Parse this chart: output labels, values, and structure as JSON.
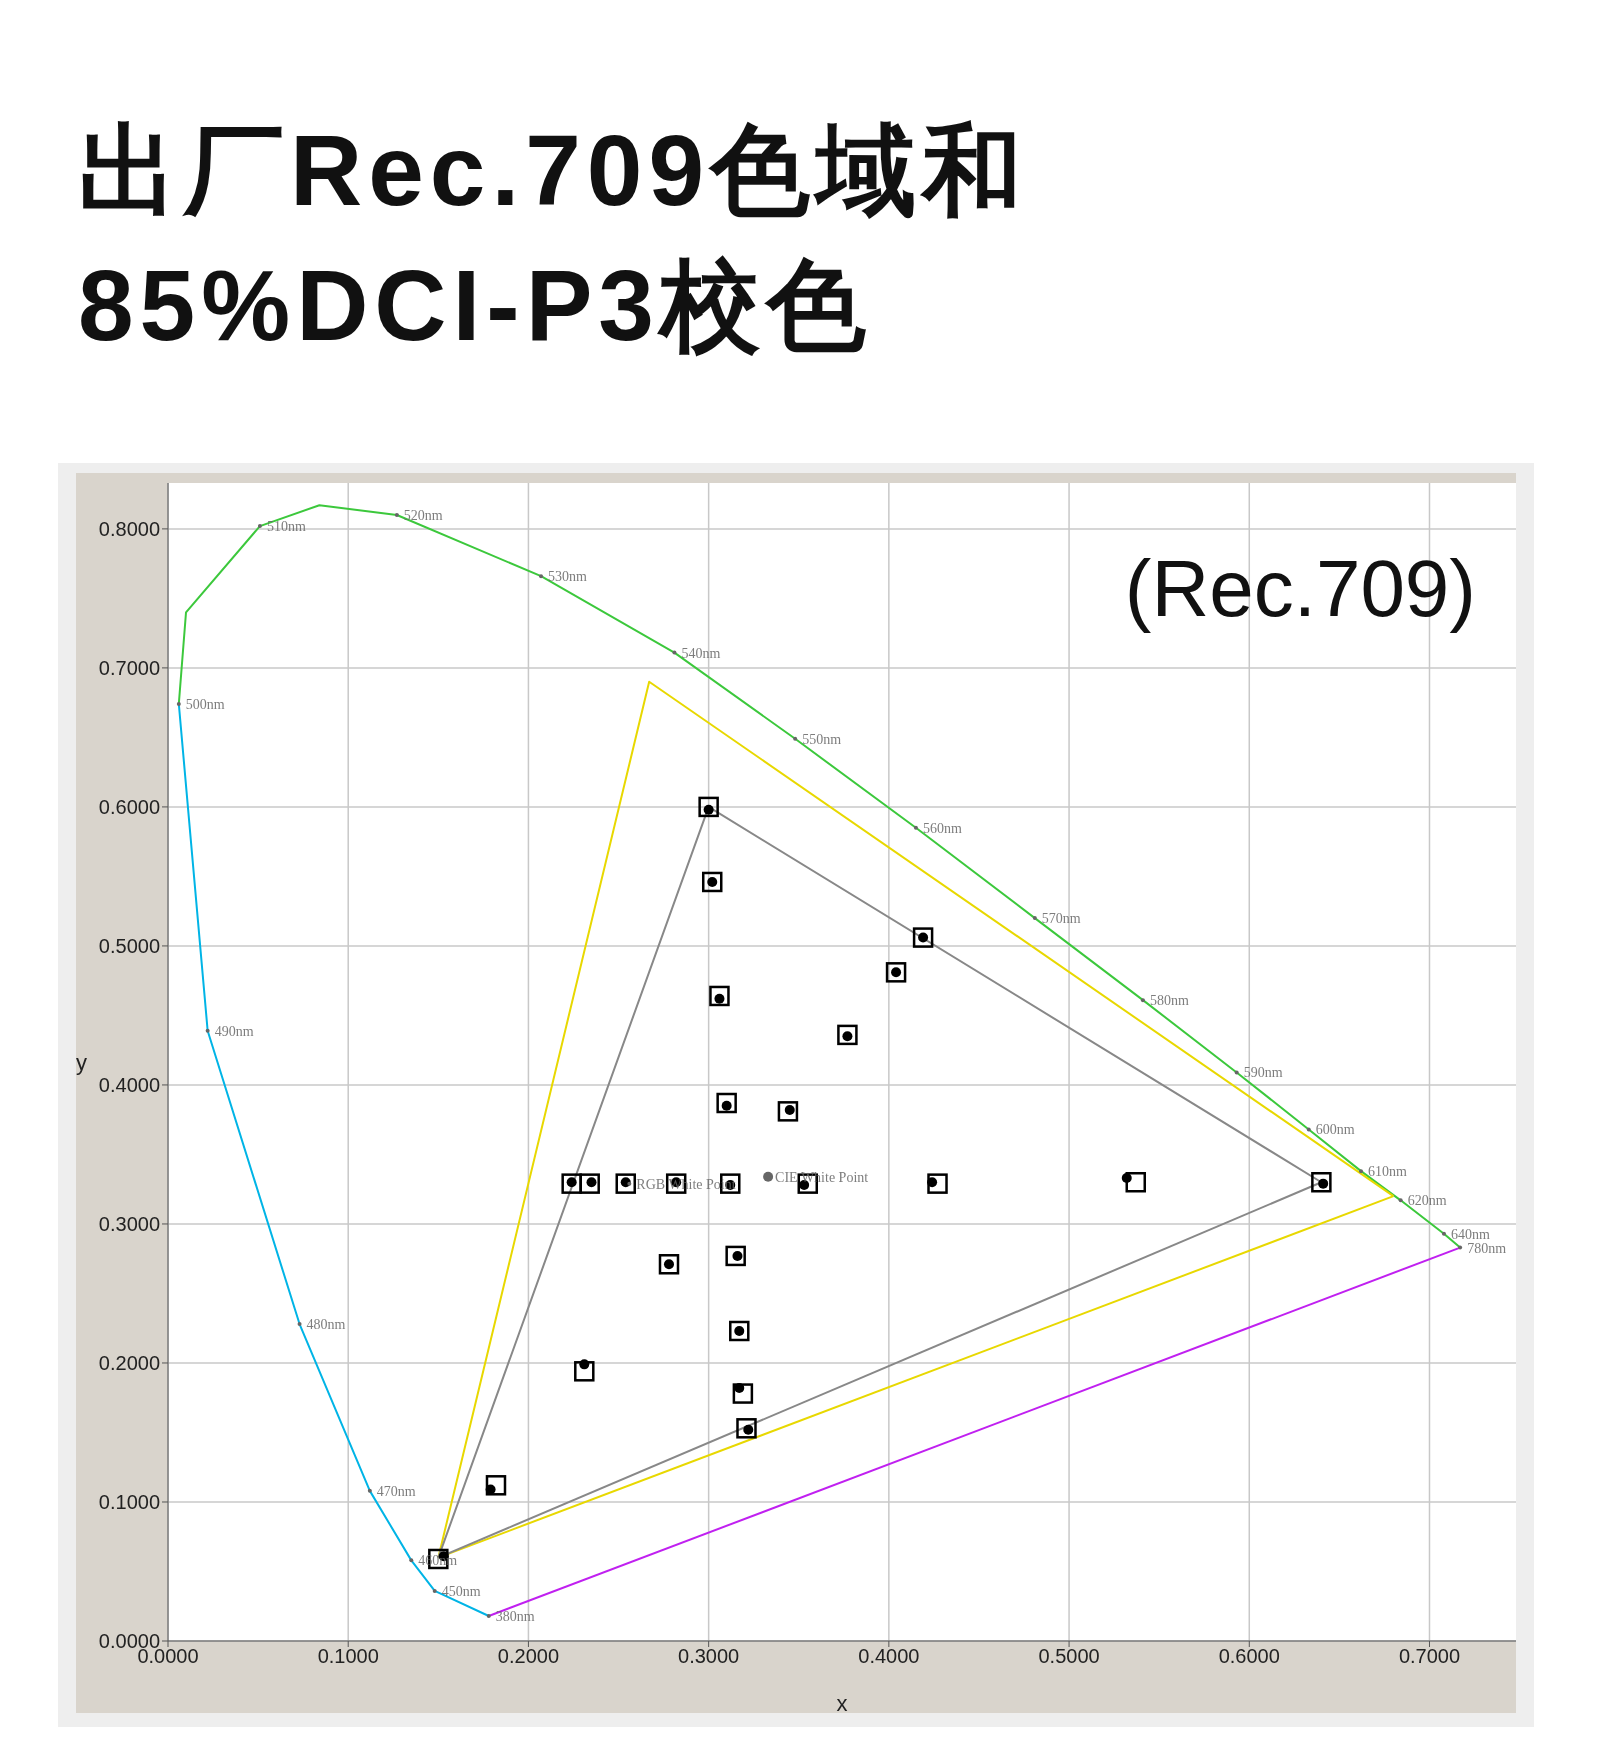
{
  "chart_data": {
    "type": "scatter",
    "title": "出厂Rec.709色域和\n85%DCI-P3校色",
    "xlabel": "x",
    "ylabel": "y",
    "xlim": [
      0,
      0.748
    ],
    "ylim": [
      0,
      0.833
    ],
    "xticks": [
      {
        "value": 0,
        "label": "0.0000"
      },
      {
        "value": 0.1,
        "label": "0.1000"
      },
      {
        "value": 0.2,
        "label": "0.2000"
      },
      {
        "value": 0.3,
        "label": "0.3000"
      },
      {
        "value": 0.4,
        "label": "0.4000"
      },
      {
        "value": 0.5,
        "label": "0.5000"
      },
      {
        "value": 0.6,
        "label": "0.6000"
      },
      {
        "value": 0.7,
        "label": "0.7000"
      }
    ],
    "yticks": [
      {
        "value": 0,
        "label": "0.0000"
      },
      {
        "value": 0.1,
        "label": "0.1000"
      },
      {
        "value": 0.2,
        "label": "0.2000"
      },
      {
        "value": 0.3,
        "label": "0.3000"
      },
      {
        "value": 0.4,
        "label": "0.4000"
      },
      {
        "value": 0.5,
        "label": "0.5000"
      },
      {
        "value": 0.6,
        "label": "0.6000"
      },
      {
        "value": 0.7,
        "label": "0.7000"
      },
      {
        "value": 0.8,
        "label": "0.8000"
      }
    ],
    "grid": true,
    "series": [
      {
        "type": "line",
        "color": "#00b4e6",
        "marker": "none",
        "x": [
          0.006,
          0.022,
          0.073,
          0.112,
          0.135,
          0.148,
          0.178
        ],
        "values": [
          0.674,
          0.439,
          0.228,
          0.108,
          0.058,
          0.036,
          0.018
        ]
      },
      {
        "type": "line",
        "color": "#3cc83c",
        "marker": "none",
        "x": [
          0.006,
          0.01,
          0.051,
          0.084,
          0.127,
          0.207,
          0.281,
          0.348,
          0.415,
          0.481,
          0.541,
          0.593,
          0.633,
          0.662,
          0.684,
          0.708,
          0.717
        ],
        "values": [
          0.674,
          0.74,
          0.802,
          0.817,
          0.81,
          0.766,
          0.711,
          0.649,
          0.585,
          0.52,
          0.461,
          0.409,
          0.368,
          0.338,
          0.317,
          0.293,
          0.283
        ]
      },
      {
        "type": "line",
        "color": "#c020f0",
        "marker": "none",
        "x": [
          0.178,
          0.717
        ],
        "values": [
          0.018,
          0.283
        ]
      },
      {
        "type": "line",
        "color": "#e8d800",
        "marker": "none",
        "x": [
          0.15,
          0.267,
          0.68
        ],
        "values": [
          0.06,
          0.69,
          0.32
        ]
      },
      {
        "type": "line",
        "color": "#e8d800",
        "marker": "none",
        "x": [
          0.15,
          0.68
        ],
        "values": [
          0.06,
          0.32
        ]
      },
      {
        "type": "line",
        "color": "#888888",
        "marker": "none",
        "x": [
          0.15,
          0.3,
          0.64
        ],
        "values": [
          0.06,
          0.6,
          0.33
        ]
      },
      {
        "type": "line",
        "color": "#888888",
        "marker": "none",
        "x": [
          0.15,
          0.64
        ],
        "values": [
          0.06,
          0.33
        ]
      },
      {
        "type": "scatter",
        "color": "#000000",
        "marker": "square",
        "x": [
          0.3,
          0.302,
          0.419,
          0.404,
          0.306,
          0.377,
          0.31,
          0.344,
          0.224,
          0.234,
          0.254,
          0.282,
          0.312,
          0.355,
          0.427,
          0.537,
          0.64,
          0.278,
          0.315,
          0.317,
          0.231,
          0.319,
          0.321,
          0.15,
          0.182
        ],
        "values": [
          0.6,
          0.546,
          0.506,
          0.481,
          0.464,
          0.436,
          0.387,
          0.381,
          0.329,
          0.329,
          0.329,
          0.329,
          0.329,
          0.329,
          0.329,
          0.33,
          0.33,
          0.271,
          0.277,
          0.223,
          0.194,
          0.178,
          0.153,
          0.059,
          0.112
        ]
      },
      {
        "type": "scatter",
        "color": "#666666",
        "marker": "circle",
        "x": [
          0.333
        ],
        "values": [
          0.334
        ]
      },
      {
        "type": "scatter",
        "color": "#000000",
        "marker": "circle",
        "x": [
          0.3,
          0.302,
          0.419,
          0.404,
          0.306,
          0.377,
          0.31,
          0.345,
          0.224,
          0.235,
          0.254,
          0.282,
          0.312,
          0.353,
          0.424,
          0.532,
          0.641,
          0.278,
          0.316,
          0.317,
          0.231,
          0.317,
          0.322,
          0.153,
          0.179
        ],
        "values": [
          0.598,
          0.546,
          0.506,
          0.481,
          0.462,
          0.435,
          0.385,
          0.382,
          0.33,
          0.33,
          0.33,
          0.33,
          0.328,
          0.328,
          0.33,
          0.333,
          0.329,
          0.271,
          0.277,
          0.223,
          0.199,
          0.182,
          0.152,
          0.061,
          0.109
        ]
      }
    ],
    "annotations": [
      "(Rec.709)",
      {
        "text": "380nm",
        "x": 0.178,
        "y": 0.018
      },
      {
        "text": "450nm",
        "x": 0.148,
        "y": 0.036
      },
      {
        "text": "460nm",
        "x": 0.135,
        "y": 0.058
      },
      {
        "text": "470nm",
        "x": 0.112,
        "y": 0.108
      },
      {
        "text": "480nm",
        "x": 0.073,
        "y": 0.228
      },
      {
        "text": "490nm",
        "x": 0.022,
        "y": 0.439
      },
      {
        "text": "500nm",
        "x": 0.006,
        "y": 0.674
      },
      {
        "text": "510nm",
        "x": 0.051,
        "y": 0.802
      },
      {
        "text": "520nm",
        "x": 0.127,
        "y": 0.81
      },
      {
        "text": "530nm",
        "x": 0.207,
        "y": 0.766
      },
      {
        "text": "540nm",
        "x": 0.281,
        "y": 0.711
      },
      {
        "text": "550nm",
        "x": 0.348,
        "y": 0.649
      },
      {
        "text": "560nm",
        "x": 0.415,
        "y": 0.585
      },
      {
        "text": "570nm",
        "x": 0.481,
        "y": 0.52
      },
      {
        "text": "580nm",
        "x": 0.541,
        "y": 0.461
      },
      {
        "text": "590nm",
        "x": 0.593,
        "y": 0.409
      },
      {
        "text": "600nm",
        "x": 0.633,
        "y": 0.368
      },
      {
        "text": "610nm",
        "x": 0.662,
        "y": 0.338
      },
      {
        "text": "620nm",
        "x": 0.684,
        "y": 0.317
      },
      {
        "text": "640nm",
        "x": 0.708,
        "y": 0.293
      },
      {
        "text": "780nm",
        "x": 0.717,
        "y": 0.283
      },
      {
        "text": "RGB White Point",
        "x": 0.256,
        "y": 0.329
      },
      {
        "text": "CIE White Point",
        "x": 0.333,
        "y": 0.334
      }
    ]
  }
}
